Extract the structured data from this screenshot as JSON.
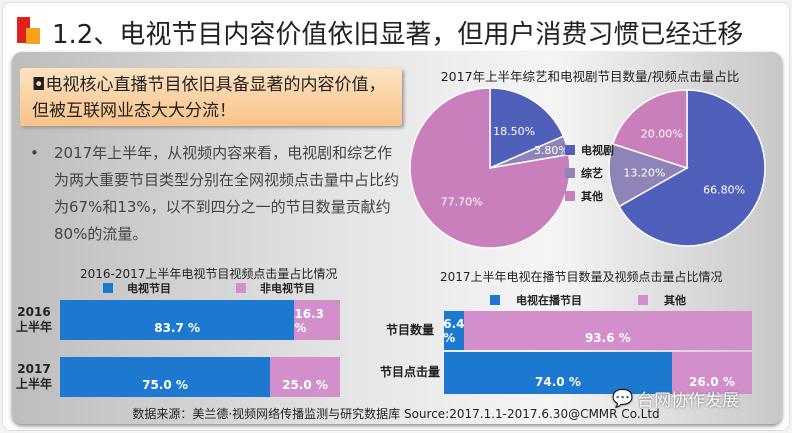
{
  "header": {
    "title": "1.2、电视节目内容价值依旧显著，但用户消费习惯已经迁移"
  },
  "callout": {
    "text": "◘电视核心直播节目依旧具备显著的内容价值，但被互联网业态大大分流！"
  },
  "bullet": {
    "marker": "•",
    "text": "2017年上半年，从视频内容来看，电视剧和综艺作为两大重要节目类型分别在全网视频点击量中占比约为67%和13%，以不到四分之一的节目数量贡献约80%的流量。"
  },
  "colors": {
    "blue_pie": "#4f5fba",
    "purple_pie": "#8e84b8",
    "pink_pie": "#c97fbb",
    "blue_bar": "#1d78cf",
    "pink_bar": "#d28fcb"
  },
  "chart_data": [
    {
      "type": "pie",
      "title": "2017年上半年综艺和电视剧节目数量/视频点击量占比",
      "legend": [
        "电视剧",
        "综艺",
        "其他"
      ],
      "pies": [
        {
          "name": "节目数量",
          "values": [
            18.5,
            3.8,
            77.7
          ],
          "labels": [
            "18.50%",
            "3.80%",
            "77.70%"
          ]
        },
        {
          "name": "视频点击量",
          "values": [
            66.8,
            13.2,
            20.0
          ],
          "labels": [
            "66.80%",
            "13.20%",
            "20.00%"
          ]
        }
      ]
    },
    {
      "type": "bar",
      "stacked": true,
      "orientation": "horizontal",
      "title": "2016-2017上半年电视节目视频点击量占比情况",
      "categories": [
        "2016\n上半年",
        "2017\n上半年"
      ],
      "series": [
        {
          "name": "电视节目",
          "values": [
            83.7,
            75.0
          ],
          "labels": [
            "83.7 %",
            "75.0 %"
          ]
        },
        {
          "name": "非电视节目",
          "values": [
            16.3,
            25.0
          ],
          "labels": [
            "16.3 %",
            "25.0 %"
          ]
        }
      ]
    },
    {
      "type": "bar",
      "stacked": true,
      "orientation": "horizontal",
      "title": "2017上半年电视在播节目数量及视频点击量占比情况",
      "categories": [
        "节目数量",
        "节目点击量"
      ],
      "series": [
        {
          "name": "电视在播节目",
          "values": [
            6.4,
            74.0
          ],
          "labels": [
            "6.4 %",
            "74.0 %"
          ]
        },
        {
          "name": "其他",
          "values": [
            93.6,
            26.0
          ],
          "labels": [
            "93.6 %",
            "26.0 %"
          ]
        }
      ]
    }
  ],
  "footer": {
    "source": "数据来源：美兰德·视频网络传播监测与研究数据库  Source:2017.1.1-2017.6.30@CMMR Co.Ltd",
    "watermark": "台网协作发展"
  }
}
